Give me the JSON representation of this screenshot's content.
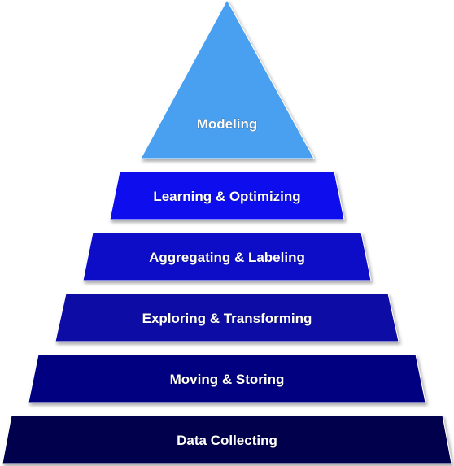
{
  "pyramid": {
    "tiers": [
      {
        "label": "Modeling",
        "color": "#4a9ff0"
      },
      {
        "label": "Learning & Optimizing",
        "color": "#1111ee"
      },
      {
        "label": "Aggregating & Labeling",
        "color": "#0b0bc8"
      },
      {
        "label": "Exploring & Transforming",
        "color": "#0707a6"
      },
      {
        "label": "Moving & Storing",
        "color": "#050580"
      },
      {
        "label": "Data Collecting",
        "color": "#03034e"
      }
    ]
  }
}
